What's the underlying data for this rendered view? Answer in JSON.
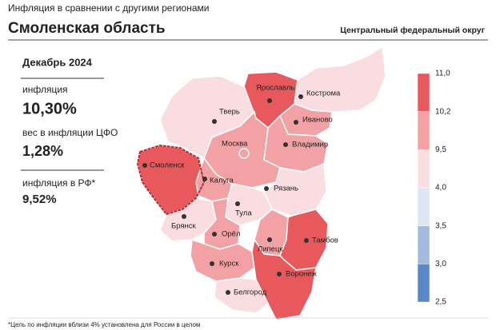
{
  "header": {
    "subtitle": "Инфляция в сравнении с другими регионами",
    "title": "Смоленская область",
    "district": "Центральный федеральный округ"
  },
  "panel": {
    "period": "Декабрь 2024",
    "inflation_label": "инфляция",
    "inflation_value": "10,30%",
    "weight_label": "вес в инфляции ЦФО",
    "weight_value": "1,28%",
    "rf_label": "инфляция в РФ*",
    "rf_value": "9,52%"
  },
  "legend": {
    "ticks": [
      "11,0",
      "10,2",
      "9,5",
      "4,0",
      "3,5",
      "3,0",
      "2,5"
    ],
    "colors": [
      "#e8595d",
      "#f2a2a5",
      "#f9dde0",
      "#dde6f3",
      "#a2badd",
      "#5a87c6"
    ]
  },
  "regions": [
    {
      "name": "Смоленск",
      "color": "#e8595d"
    },
    {
      "name": "Тверь",
      "color": "#f9dde0"
    },
    {
      "name": "Ярославль",
      "color": "#e8595d"
    },
    {
      "name": "Кострома",
      "color": "#f9dde0"
    },
    {
      "name": "Иваново",
      "color": "#f2a2a5"
    },
    {
      "name": "Владимир",
      "color": "#f2a2a5"
    },
    {
      "name": "Москва",
      "color": "#f2a2a5"
    },
    {
      "name": "Калуга",
      "color": "#f2a2a5"
    },
    {
      "name": "Рязань",
      "color": "#f9dde0"
    },
    {
      "name": "Тула",
      "color": "#f9dde0"
    },
    {
      "name": "Брянск",
      "color": "#f9dde0"
    },
    {
      "name": "Орёл",
      "color": "#f2a2a5"
    },
    {
      "name": "Липецк",
      "color": "#f2a2a5"
    },
    {
      "name": "Тамбов",
      "color": "#e8595d"
    },
    {
      "name": "Курск",
      "color": "#f2a2a5"
    },
    {
      "name": "Воронеж",
      "color": "#e8595d"
    },
    {
      "name": "Белгород",
      "color": "#f9dde0"
    }
  ],
  "footnote": "*Цель по инфляции вблизи 4% установлена для России в целом"
}
